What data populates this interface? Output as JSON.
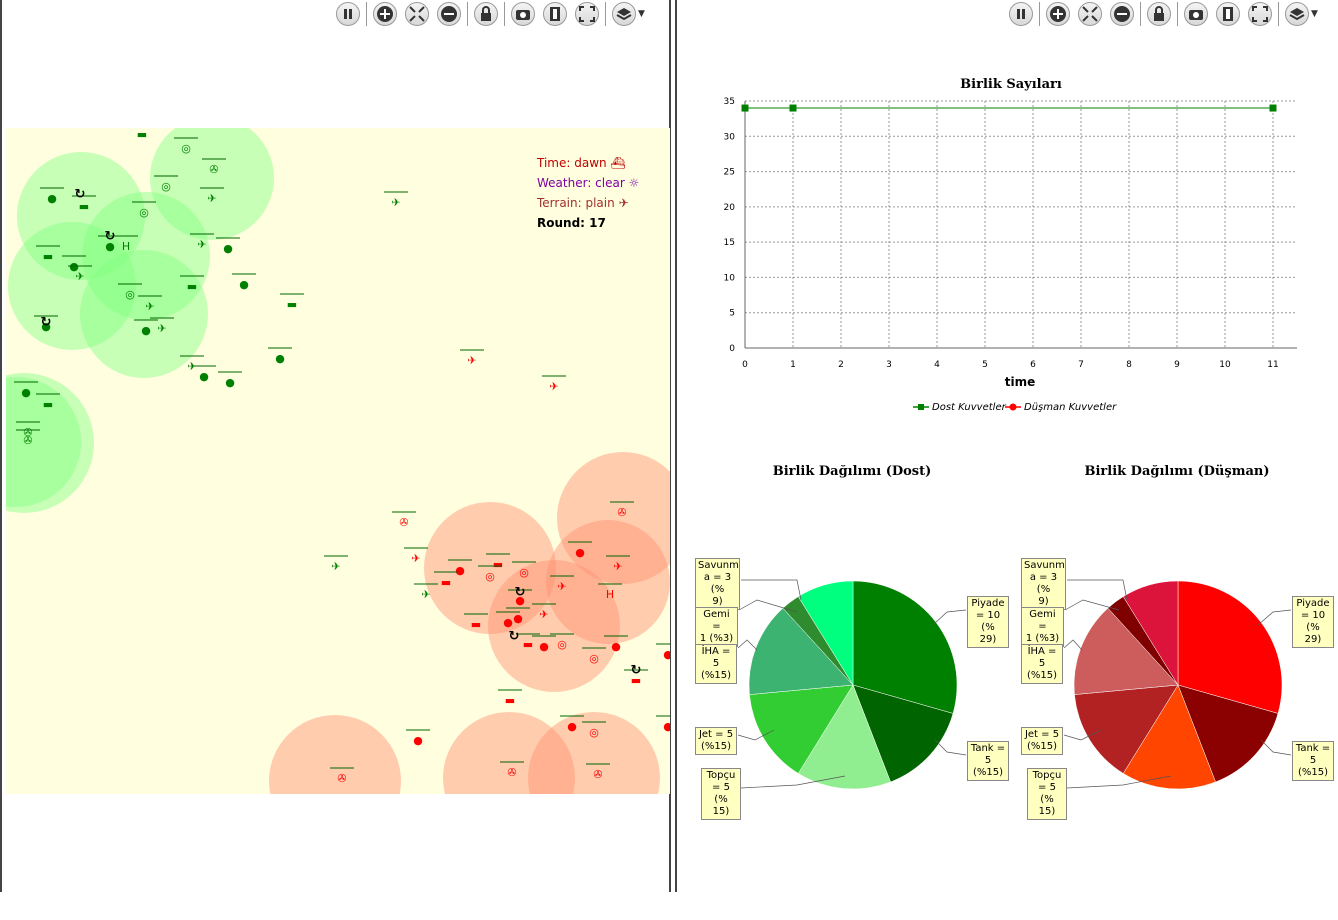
{
  "toolbar": {
    "buttons": [
      "pause-icon",
      "zoom-in-icon",
      "fit-icon",
      "zoom-out-icon",
      "lock-icon",
      "camera-icon",
      "film-icon",
      "fullscreen-icon",
      "layers-icon"
    ]
  },
  "map_info": {
    "time": "Time: dawn",
    "weather": "Weather: clear",
    "terrain": "Terrain: plain",
    "round": "Round: 17"
  },
  "colors": {
    "friendly": "#008000",
    "enemy": "#ff0000",
    "map_bg": "#ffffe0",
    "friendly_range": "#80ff80",
    "enemy_range": "#ff9070"
  },
  "chart_data": [
    {
      "type": "line",
      "title": "Birlik Sayıları",
      "xlabel": "time",
      "ylabel": "",
      "xlim": [
        0,
        11.5
      ],
      "ylim": [
        0,
        35
      ],
      "x_ticks": [
        0,
        1,
        2,
        3,
        4,
        5,
        6,
        7,
        8,
        9,
        10,
        11
      ],
      "y_ticks": [
        0,
        5,
        10,
        15,
        20,
        25,
        30,
        35
      ],
      "grid": true,
      "legend": "bottom",
      "series": [
        {
          "name": "Dost Kuvvetler",
          "color": "#008000",
          "x": [
            0,
            1,
            11
          ],
          "y": [
            34,
            34,
            34
          ]
        },
        {
          "name": "Düşman Kuvvetler",
          "color": "#ff0000",
          "x": [
            0,
            1,
            11
          ],
          "y": [
            34,
            34,
            34
          ]
        }
      ]
    },
    {
      "type": "pie",
      "title": "Birlik Dağılımı (Dost)",
      "slices": [
        {
          "label": "Piyade = 10 (%29)",
          "value": 10,
          "color": "#008000"
        },
        {
          "label": "Tank = 5 (%15)",
          "value": 5,
          "color": "#006400"
        },
        {
          "label": "Topçu = 5 (%15)",
          "value": 5,
          "color": "#90ee90"
        },
        {
          "label": "Jet = 5 (%15)",
          "value": 5,
          "color": "#32cd32"
        },
        {
          "label": "İHA = 5 (%15)",
          "value": 5,
          "color": "#3cb371"
        },
        {
          "label": "Gemi = 1 (%3)",
          "value": 1,
          "color": "#2e8b2e"
        },
        {
          "label": "Savunma = 3 (%9)",
          "value": 3,
          "color": "#00ff7f"
        }
      ]
    },
    {
      "type": "pie",
      "title": "Birlik Dağılımı (Düşman)",
      "slices": [
        {
          "label": "Piyade = 10 (%29)",
          "value": 10,
          "color": "#ff0000"
        },
        {
          "label": "Tank = 5 (%15)",
          "value": 5,
          "color": "#8b0000"
        },
        {
          "label": "Topçu = 5 (%15)",
          "value": 5,
          "color": "#ff4500"
        },
        {
          "label": "Jet = 5 (%15)",
          "value": 5,
          "color": "#b22222"
        },
        {
          "label": "İHA = 5 (%15)",
          "value": 5,
          "color": "#cd5c5c"
        },
        {
          "label": "Gemi = 1 (%3)",
          "value": 1,
          "color": "#800000"
        },
        {
          "label": "Savunma = 3 (%9)",
          "value": 3,
          "color": "#dc143c"
        }
      ]
    }
  ],
  "pie_labels": {
    "dost": {
      "piyade": [
        "Piyade",
        "= 10 (%",
        "29)"
      ],
      "tank": [
        "Tank =",
        "5 (%15)"
      ],
      "topcu": [
        "Topçu",
        "= 5 (%",
        "15)"
      ],
      "jet": [
        "Jet = 5",
        "(%15)"
      ],
      "iha": [
        "İHA = 5",
        "(%15)"
      ],
      "gemi": [
        "Gemi =",
        "1 (%3)"
      ],
      "savunma": [
        "Savunm",
        "a = 3 (%",
        "9)"
      ]
    },
    "dusman": {
      "piyade": [
        "Piyade",
        "= 10 (%",
        "29)"
      ],
      "tank": [
        "Tank =",
        "5 (%15)"
      ],
      "topcu": [
        "Topçu",
        "= 5 (%",
        "15)"
      ],
      "jet": [
        "Jet = 5",
        "(%15)"
      ],
      "iha": [
        "İHA = 5",
        "(%15)"
      ],
      "gemi": [
        "Gemi =",
        "1 (%3)"
      ],
      "savunma": [
        "Savunm",
        "a = 3 (%",
        "9)"
      ]
    }
  }
}
